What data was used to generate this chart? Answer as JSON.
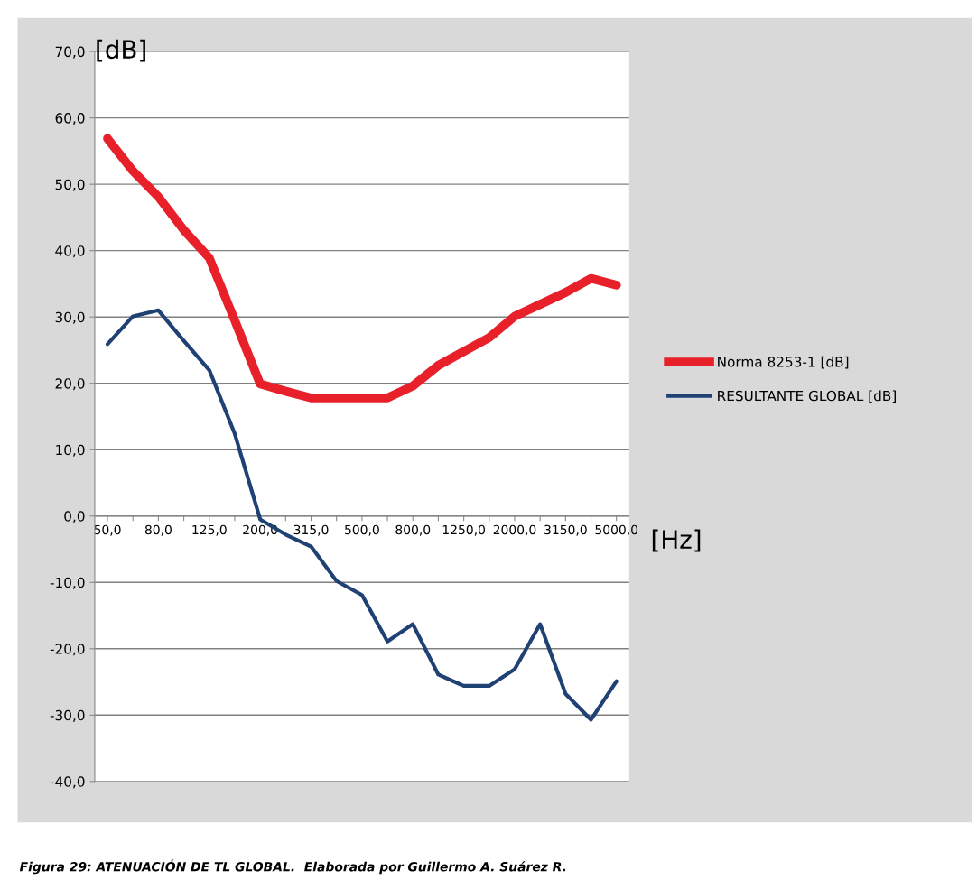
{
  "chart_data": {
    "type": "line",
    "categories": [
      "50,0",
      null,
      "80,0",
      null,
      "125,0",
      null,
      "200,0",
      null,
      "315,0",
      null,
      "500,0",
      null,
      "800,0",
      null,
      "1250,0",
      null,
      "2000,0",
      null,
      "3150,0",
      null,
      "5000,0"
    ],
    "series": [
      {
        "name": "Norma 8253-1 [dB]",
        "color": "#e8202a",
        "values": [
          56.9,
          52.0,
          48.1,
          43.1,
          38.9,
          29.5,
          19.9,
          18.8,
          17.8,
          17.8,
          17.8,
          17.8,
          19.6,
          22.7,
          24.8,
          26.9,
          30.1,
          31.9,
          33.7,
          35.8,
          34.8
        ]
      },
      {
        "name": "RESULTANTE GLOBAL [dB]",
        "color": "#1f4173",
        "values": [
          25.9,
          30.1,
          31.0,
          26.4,
          22.0,
          12.4,
          -0.5,
          -2.8,
          -4.6,
          -9.8,
          -11.9,
          -18.9,
          -16.3,
          -23.9,
          -25.6,
          -25.6,
          -23.1,
          -16.3,
          -26.8,
          -30.7,
          -24.9
        ]
      }
    ],
    "ylim": [
      -40,
      70
    ],
    "yticks": [
      {
        "value": -40,
        "label": "-40,0"
      },
      {
        "value": -30,
        "label": "-30,0"
      },
      {
        "value": -20,
        "label": "-20,0"
      },
      {
        "value": -10,
        "label": "-10,0"
      },
      {
        "value": 0,
        "label": "0,0"
      },
      {
        "value": 10,
        "label": "10,0"
      },
      {
        "value": 20,
        "label": "20,0"
      },
      {
        "value": 30,
        "label": "30,0"
      },
      {
        "value": 40,
        "label": "40,0"
      },
      {
        "value": 50,
        "label": "50,0"
      },
      {
        "value": 60,
        "label": "60,0"
      },
      {
        "value": 70,
        "label": "70,0"
      }
    ],
    "ylabel": "[dB]",
    "xlabel": "[Hz]",
    "grid": "y",
    "legend": "right",
    "marker": "none",
    "line_style": "solid",
    "annotations": [
      "Figura 29: ATENUACIÓN DE TL GLOBAL.  Elaborada por Guillermo A. Suárez R."
    ]
  }
}
